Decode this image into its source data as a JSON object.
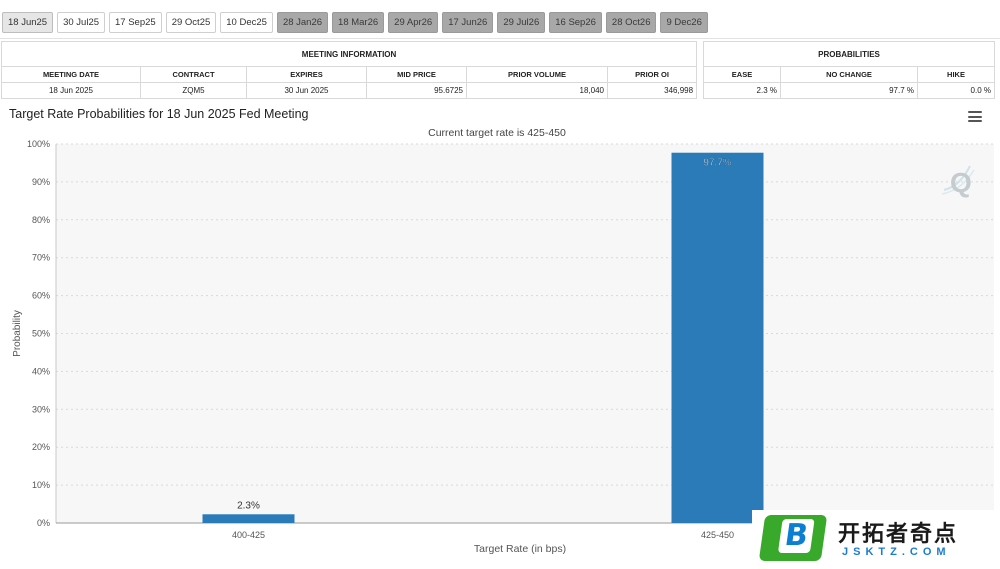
{
  "tabs": [
    {
      "label": "18 Jun25",
      "state": "active"
    },
    {
      "label": "30 Jul25",
      "state": "normal"
    },
    {
      "label": "17 Sep25",
      "state": "normal"
    },
    {
      "label": "29 Oct25",
      "state": "normal"
    },
    {
      "label": "10 Dec25",
      "state": "normal"
    },
    {
      "label": "28 Jan26",
      "state": "grey"
    },
    {
      "label": "18 Mar26",
      "state": "grey"
    },
    {
      "label": "29 Apr26",
      "state": "grey"
    },
    {
      "label": "17 Jun26",
      "state": "grey"
    },
    {
      "label": "29 Jul26",
      "state": "grey"
    },
    {
      "label": "16 Sep26",
      "state": "grey"
    },
    {
      "label": "28 Oct26",
      "state": "grey"
    },
    {
      "label": "9 Dec26",
      "state": "grey"
    }
  ],
  "meeting_info": {
    "title": "MEETING INFORMATION",
    "headers": [
      "MEETING DATE",
      "CONTRACT",
      "EXPIRES",
      "MID PRICE",
      "PRIOR VOLUME",
      "PRIOR OI"
    ],
    "row": [
      "18 Jun 2025",
      "ZQM5",
      "30 Jun 2025",
      "95.6725",
      "18,040",
      "346,998"
    ]
  },
  "probabilities": {
    "title": "PROBABILITIES",
    "headers": [
      "EASE",
      "NO CHANGE",
      "HIKE"
    ],
    "row": [
      "2.3 %",
      "97.7 %",
      "0.0 %"
    ]
  },
  "chart": {
    "title": "Target Rate Probabilities for 18 Jun 2025 Fed Meeting",
    "subtitle": "Current target rate is 425-450",
    "menu_icon": "hamburger-menu-icon"
  },
  "chart_data": {
    "type": "bar",
    "categories": [
      "400-425",
      "425-450"
    ],
    "values": [
      2.3,
      97.7
    ],
    "data_labels": [
      "2.3%",
      "97.7%"
    ],
    "xlabel": "Target Rate (in bps)",
    "ylabel": "Probability",
    "ylim": [
      0,
      100
    ],
    "yticks": [
      "0%",
      "10%",
      "20%",
      "30%",
      "40%",
      "50%",
      "60%",
      "70%",
      "80%",
      "90%",
      "100%"
    ],
    "grid": true,
    "bar_color": "#2b7bb9",
    "plot_background": "#f7f7f7"
  },
  "brand": {
    "cn": "开拓者奇点",
    "en": "JSKTZ.COM",
    "logo_letter": "B"
  }
}
